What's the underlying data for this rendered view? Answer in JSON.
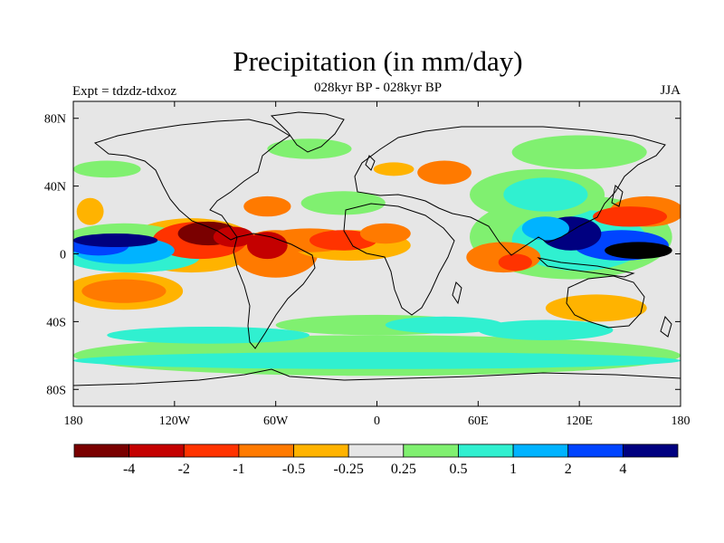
{
  "figure": {
    "title": "Precipitation (in mm/day)",
    "subtitle": "028kyr BP - 028kyr BP",
    "experiment_label": "Expt = tdzdz-tdxoz",
    "season_label": "JJA"
  },
  "map": {
    "projection": "cylindrical-equidistant",
    "background_color": "#e6e6e6",
    "lat_ticks": [
      {
        "value": 80,
        "label": "80N"
      },
      {
        "value": 40,
        "label": "40N"
      },
      {
        "value": 0,
        "label": "0"
      },
      {
        "value": -40,
        "label": "40S"
      },
      {
        "value": -80,
        "label": "80S"
      }
    ],
    "lon_ticks": [
      {
        "value": -180,
        "label": "180"
      },
      {
        "value": -120,
        "label": "120W"
      },
      {
        "value": -60,
        "label": "60W"
      },
      {
        "value": 0,
        "label": "0"
      },
      {
        "value": 60,
        "label": "60E"
      },
      {
        "value": 120,
        "label": "120E"
      },
      {
        "value": 180,
        "label": "180"
      }
    ],
    "anomaly_blobs": [
      {
        "lon": -100,
        "lat": 12,
        "rx": 18,
        "ry": 7,
        "level": 0
      },
      {
        "lon": -85,
        "lat": 10,
        "rx": 12,
        "ry": 6,
        "level": 1
      },
      {
        "lon": -65,
        "lat": 5,
        "rx": 12,
        "ry": 8,
        "level": 1
      },
      {
        "lon": -105,
        "lat": 8,
        "rx": 28,
        "ry": 11,
        "level": 2
      },
      {
        "lon": -60,
        "lat": 0,
        "rx": 25,
        "ry": 14,
        "level": 3
      },
      {
        "lon": -65,
        "lat": 28,
        "rx": 14,
        "ry": 6,
        "level": 3
      },
      {
        "lon": -110,
        "lat": 5,
        "rx": 40,
        "ry": 16,
        "level": 4
      },
      {
        "lon": -40,
        "lat": 8,
        "rx": 28,
        "ry": 7,
        "level": 3
      },
      {
        "lon": -20,
        "lat": 8,
        "rx": 20,
        "ry": 6,
        "level": 2
      },
      {
        "lon": 5,
        "lat": 12,
        "rx": 15,
        "ry": 6,
        "level": 3
      },
      {
        "lon": -15,
        "lat": 5,
        "rx": 35,
        "ry": 9,
        "level": 4
      },
      {
        "lon": 40,
        "lat": 48,
        "rx": 16,
        "ry": 7,
        "level": 3
      },
      {
        "lon": 10,
        "lat": 50,
        "rx": 12,
        "ry": 4,
        "level": 4
      },
      {
        "lon": 82,
        "lat": -5,
        "rx": 10,
        "ry": 5,
        "level": 2
      },
      {
        "lon": 75,
        "lat": -2,
        "rx": 22,
        "ry": 9,
        "level": 3
      },
      {
        "lon": 150,
        "lat": 22,
        "rx": 22,
        "ry": 6,
        "level": 2
      },
      {
        "lon": 160,
        "lat": 25,
        "rx": 22,
        "ry": 9,
        "level": 3
      },
      {
        "lon": -150,
        "lat": -22,
        "rx": 25,
        "ry": 7,
        "level": 3
      },
      {
        "lon": -150,
        "lat": -22,
        "rx": 35,
        "ry": 11,
        "level": 4
      },
      {
        "lon": 130,
        "lat": -32,
        "rx": 30,
        "ry": 8,
        "level": 4
      },
      {
        "lon": -170,
        "lat": 25,
        "rx": 8,
        "ry": 8,
        "level": 4
      },
      {
        "lon": -155,
        "lat": 8,
        "rx": 25,
        "ry": 4,
        "level": 10
      },
      {
        "lon": -165,
        "lat": 5,
        "rx": 18,
        "ry": 6,
        "level": 9
      },
      {
        "lon": -150,
        "lat": 2,
        "rx": 30,
        "ry": 8,
        "level": 8
      },
      {
        "lon": -145,
        "lat": -2,
        "rx": 40,
        "ry": 9,
        "level": 7
      },
      {
        "lon": -150,
        "lat": 5,
        "rx": 40,
        "ry": 13,
        "level": 6
      },
      {
        "lon": 115,
        "lat": 12,
        "rx": 18,
        "ry": 10,
        "level": 10
      },
      {
        "lon": 155,
        "lat": 2,
        "rx": 20,
        "ry": 5,
        "level": 11
      },
      {
        "lon": 145,
        "lat": 5,
        "rx": 28,
        "ry": 9,
        "level": 9
      },
      {
        "lon": 100,
        "lat": 15,
        "rx": 14,
        "ry": 7,
        "level": 8
      },
      {
        "lon": 120,
        "lat": 8,
        "rx": 40,
        "ry": 18,
        "level": 7
      },
      {
        "lon": 115,
        "lat": 10,
        "rx": 60,
        "ry": 25,
        "level": 6
      },
      {
        "lon": 100,
        "lat": 35,
        "rx": 25,
        "ry": 10,
        "level": 7
      },
      {
        "lon": 95,
        "lat": 35,
        "rx": 40,
        "ry": 15,
        "level": 6
      },
      {
        "lon": 120,
        "lat": 60,
        "rx": 40,
        "ry": 10,
        "level": 6
      },
      {
        "lon": -40,
        "lat": 62,
        "rx": 25,
        "ry": 6,
        "level": 6
      },
      {
        "lon": -20,
        "lat": 30,
        "rx": 25,
        "ry": 7,
        "level": 6
      },
      {
        "lon": -160,
        "lat": 50,
        "rx": 20,
        "ry": 5,
        "level": 6
      },
      {
        "lon": 40,
        "lat": -42,
        "rx": 35,
        "ry": 5,
        "level": 7
      },
      {
        "lon": 100,
        "lat": -45,
        "rx": 40,
        "ry": 6,
        "level": 7
      },
      {
        "lon": -100,
        "lat": -48,
        "rx": 60,
        "ry": 5,
        "level": 7
      },
      {
        "lon": 0,
        "lat": -63,
        "rx": 180,
        "ry": 5,
        "level": 7
      },
      {
        "lon": 0,
        "lat": -60,
        "rx": 180,
        "ry": 12,
        "level": 6
      },
      {
        "lon": 0,
        "lat": -42,
        "rx": 60,
        "ry": 6,
        "level": 6
      }
    ]
  },
  "colorbar": {
    "colors": [
      "#7a0000",
      "#c40000",
      "#ff3300",
      "#ff7a00",
      "#ffb300",
      "#e6e6e6",
      "#80f070",
      "#30f0d0",
      "#00b3ff",
      "#0044ff",
      "#000080"
    ],
    "labels": [
      "-4",
      "-2",
      "-1",
      "-0.5",
      "-0.25",
      "0.25",
      "0.5",
      "1",
      "2",
      "4"
    ]
  }
}
